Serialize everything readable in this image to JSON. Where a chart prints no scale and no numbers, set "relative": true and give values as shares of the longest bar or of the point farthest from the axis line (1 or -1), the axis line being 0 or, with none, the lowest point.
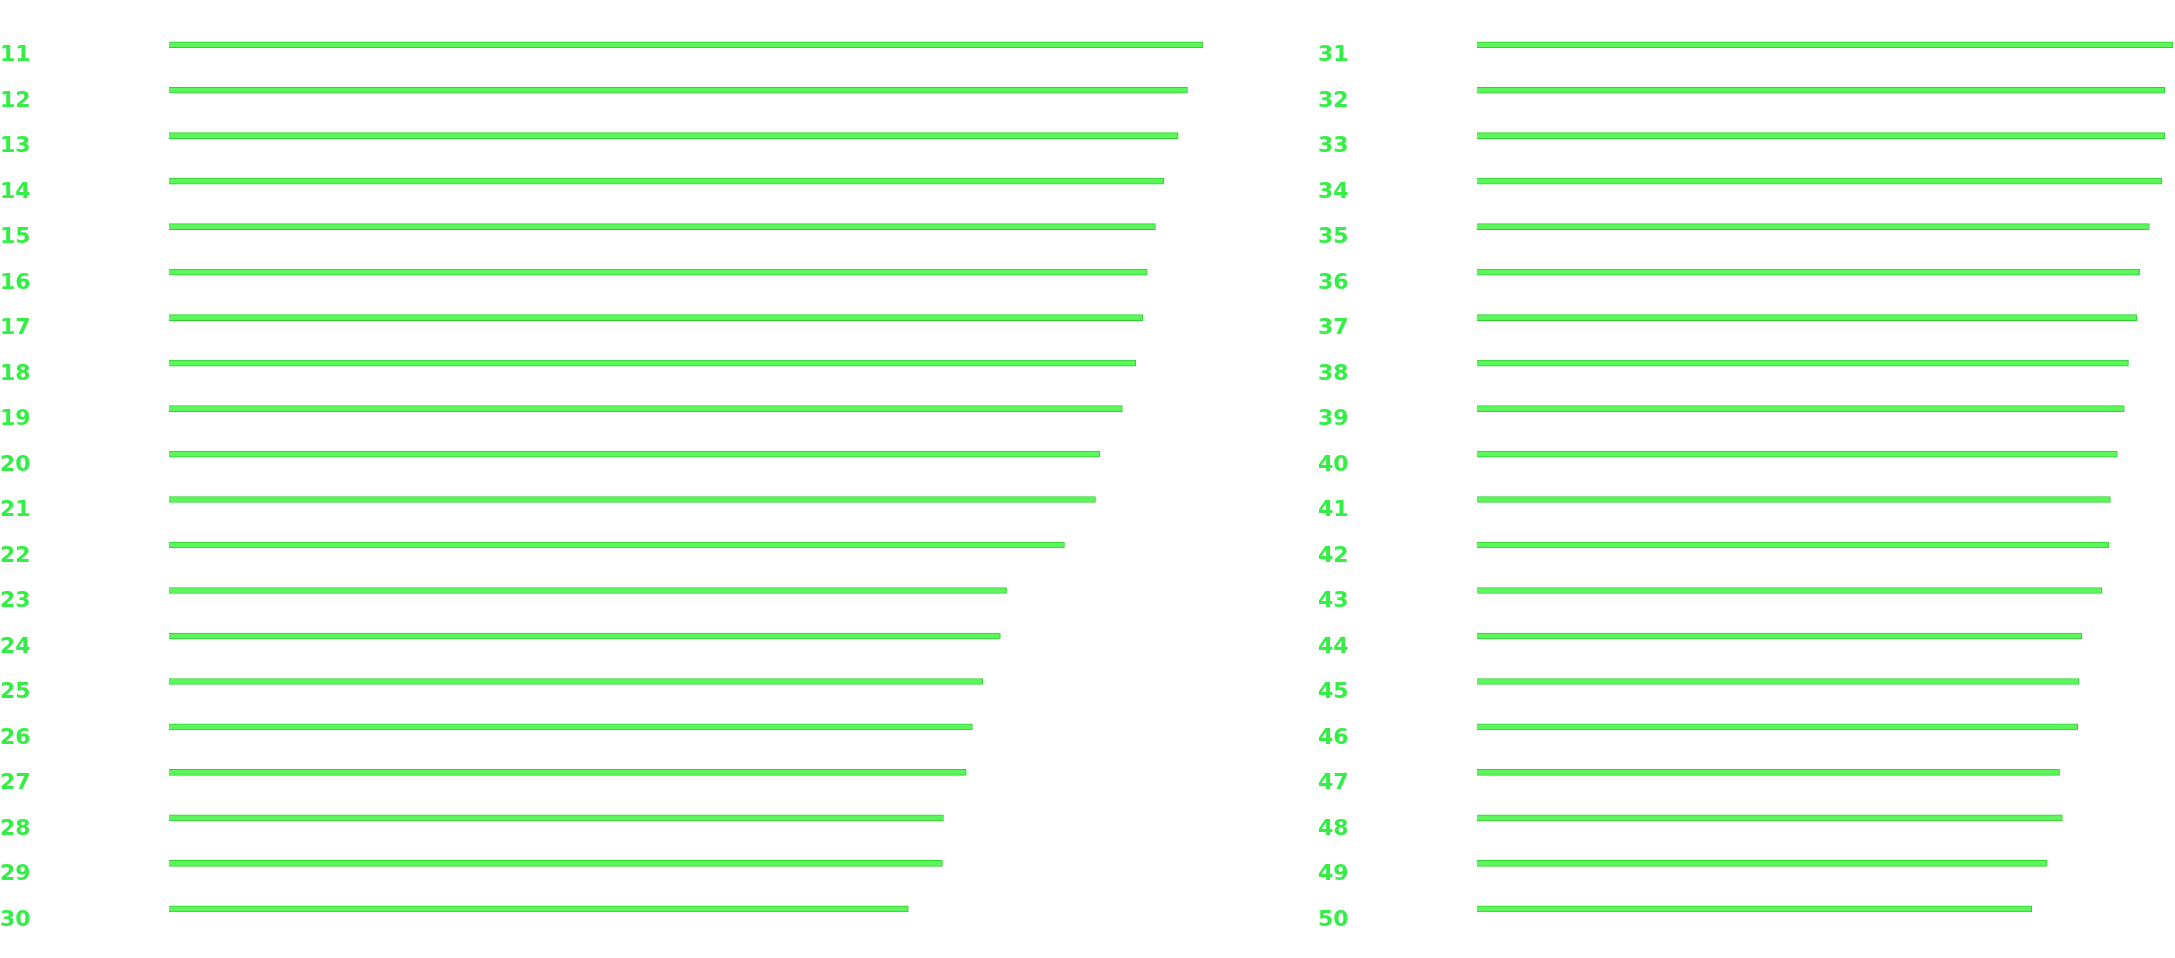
{
  "chart_data": [
    {
      "type": "bar",
      "orientation": "horizontal",
      "relative": true,
      "color": "#5cf55c",
      "categories": [
        "11",
        "12",
        "13",
        "14",
        "15",
        "16",
        "17",
        "18",
        "19",
        "20",
        "21",
        "22",
        "23",
        "24",
        "25",
        "26",
        "27",
        "28",
        "29",
        "30"
      ],
      "values": [
        1,
        0.985,
        0.976,
        0.962,
        0.954,
        0.946,
        0.942,
        0.935,
        0.922,
        0.9,
        0.896,
        0.866,
        0.81,
        0.804,
        0.787,
        0.777,
        0.771,
        0.749,
        0.748,
        0.715
      ]
    },
    {
      "type": "bar",
      "orientation": "horizontal",
      "relative": true,
      "color": "#5cf55c",
      "categories": [
        "31",
        "32",
        "33",
        "34",
        "35",
        "36",
        "37",
        "38",
        "39",
        "40",
        "41",
        "42",
        "43",
        "44",
        "45",
        "46",
        "47",
        "48",
        "49",
        "50"
      ],
      "values": [
        1,
        0.988,
        0.988,
        0.984,
        0.966,
        0.952,
        0.948,
        0.936,
        0.93,
        0.92,
        0.91,
        0.908,
        0.898,
        0.869,
        0.865,
        0.863,
        0.837,
        0.841,
        0.819,
        0.797
      ]
    }
  ]
}
